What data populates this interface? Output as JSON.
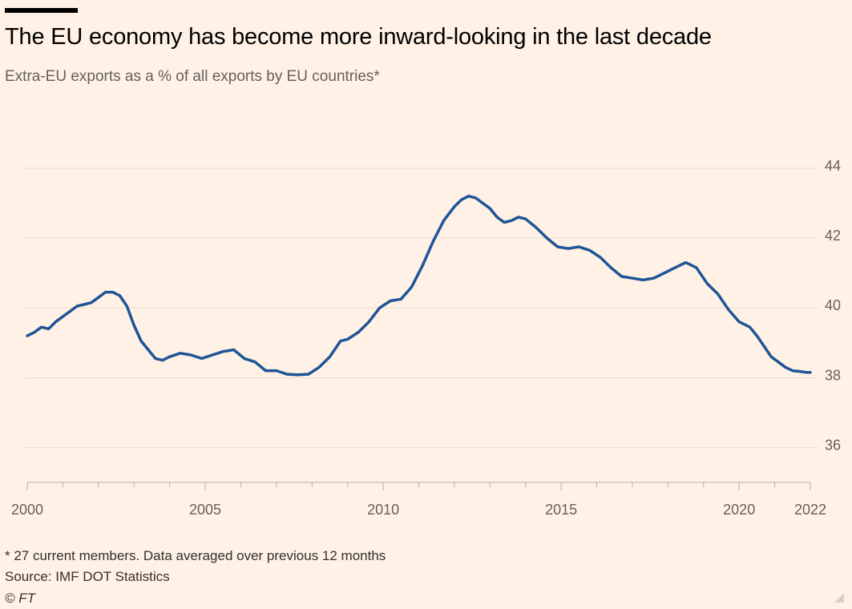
{
  "header": {
    "title": "The EU economy has become more inward-looking in the last decade",
    "subtitle": "Extra-EU exports as a % of all exports by EU countries*"
  },
  "footer": {
    "footnote": "* 27 current members. Data averaged over previous 12 months",
    "source": "Source: IMF DOT Statistics",
    "copyright": "© FT"
  },
  "colors": {
    "background": "#fff1e5",
    "line": "#1f5596",
    "grid": "#e8dcd2",
    "text": "#66605c"
  },
  "chart_data": {
    "type": "line",
    "title": "",
    "xlabel": "",
    "ylabel": "",
    "xlim": [
      2000,
      2022.1
    ],
    "ylim": [
      35,
      44
    ],
    "y_ticks": [
      36,
      38,
      40,
      42,
      44
    ],
    "y_tick_labels": [
      "36",
      "38",
      "40",
      "42",
      "44"
    ],
    "x_ticks": [
      2000,
      2005,
      2010,
      2015,
      2020,
      2022
    ],
    "x_tick_labels": [
      "2000",
      "2005",
      "2010",
      "2015",
      "2020",
      "2022"
    ],
    "y_axis_side": "right",
    "grid": "horizontal",
    "legend": "none",
    "series": [
      {
        "x": [
          2000.0,
          2000.2,
          2000.4,
          2000.6,
          2000.8,
          2001.0,
          2001.2,
          2001.4,
          2001.6,
          2001.8,
          2002.0,
          2002.2,
          2002.4,
          2002.6,
          2002.8,
          2003.0,
          2003.2,
          2003.4,
          2003.6,
          2003.8,
          2004.0,
          2004.3,
          2004.6,
          2004.9,
          2005.2,
          2005.5,
          2005.8,
          2006.1,
          2006.4,
          2006.7,
          2007.0,
          2007.3,
          2007.6,
          2007.9,
          2008.2,
          2008.5,
          2008.8,
          2009.0,
          2009.3,
          2009.6,
          2009.9,
          2010.2,
          2010.5,
          2010.8,
          2011.1,
          2011.4,
          2011.7,
          2012.0,
          2012.2,
          2012.4,
          2012.6,
          2012.8,
          2013.0,
          2013.2,
          2013.4,
          2013.6,
          2013.8,
          2014.0,
          2014.3,
          2014.6,
          2014.9,
          2015.2,
          2015.5,
          2015.8,
          2016.1,
          2016.4,
          2016.7,
          2017.0,
          2017.3,
          2017.6,
          2017.9,
          2018.2,
          2018.5,
          2018.8,
          2019.1,
          2019.4,
          2019.7,
          2020.0,
          2020.3,
          2020.5,
          2020.7,
          2020.9,
          2021.1,
          2021.3,
          2021.5,
          2021.7,
          2021.9,
          2022.0
        ],
        "values": [
          39.2,
          39.3,
          39.45,
          39.4,
          39.6,
          39.75,
          39.9,
          40.05,
          40.1,
          40.15,
          40.3,
          40.45,
          40.45,
          40.35,
          40.05,
          39.5,
          39.05,
          38.8,
          38.55,
          38.5,
          38.6,
          38.7,
          38.65,
          38.55,
          38.65,
          38.75,
          38.8,
          38.55,
          38.45,
          38.2,
          38.2,
          38.1,
          38.08,
          38.1,
          38.3,
          38.6,
          39.05,
          39.1,
          39.3,
          39.6,
          40.0,
          40.2,
          40.25,
          40.6,
          41.2,
          41.9,
          42.5,
          42.9,
          43.1,
          43.2,
          43.15,
          43.0,
          42.85,
          42.6,
          42.45,
          42.5,
          42.6,
          42.55,
          42.3,
          42.0,
          41.75,
          41.7,
          41.75,
          41.65,
          41.45,
          41.15,
          40.9,
          40.85,
          40.8,
          40.85,
          41.0,
          41.15,
          41.3,
          41.15,
          40.7,
          40.4,
          39.95,
          39.6,
          39.45,
          39.2,
          38.9,
          38.6,
          38.45,
          38.3,
          38.2,
          38.18,
          38.15,
          38.15
        ]
      }
    ]
  }
}
